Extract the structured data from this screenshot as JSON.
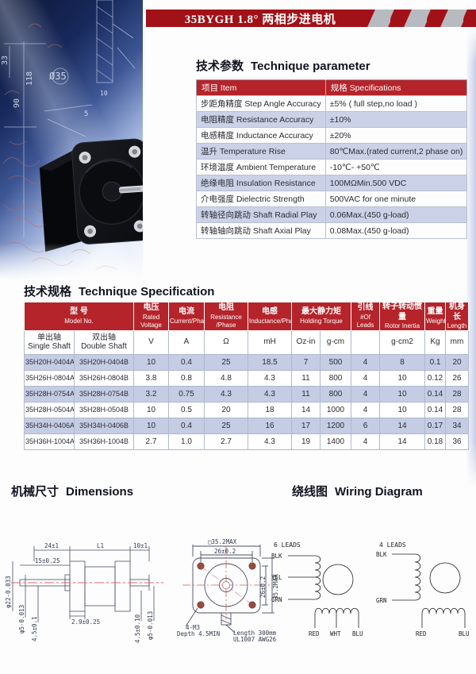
{
  "title": "35BYGH 1.8°  两相步进电机",
  "colors": {
    "banner_red": "#a21118",
    "table_header_red": "#b4242a",
    "row_blue": "#c5cde5",
    "stripe_gray": "#b7babe"
  },
  "parameters": {
    "heading_zh": "技术参数",
    "heading_en": "Technique parameter",
    "col_item": "项目  Item",
    "col_spec": "规格  Specifications",
    "rows": [
      {
        "item": "步距角精度 Step Angle Accuracy",
        "spec": "±5% ( full step,no load )"
      },
      {
        "item": "电阻精度 Resistance Accuracy",
        "spec": "±10%"
      },
      {
        "item": "电感精度 Inductance Accuracy",
        "spec": "±20%"
      },
      {
        "item": "温升 Temperature Rise",
        "spec": "80℃Max.(rated current,2 phase on)"
      },
      {
        "item": "环境温度  Ambient Temperature",
        "spec": "-10℃- +50℃"
      },
      {
        "item": "绝缘电阻  Insulation Resistance",
        "spec": "100MΩMin.500 VDC"
      },
      {
        "item": "介电强度 Dielectric Strength",
        "spec": "500VAC for one minute"
      },
      {
        "item": "转轴径向跳动 Shaft Radial Play",
        "spec": "0.06Max.(450 g-load)"
      },
      {
        "item": "转轴轴向跳动 Shaft Axial Play",
        "spec": "0.08Max.(450 g-load)"
      }
    ]
  },
  "specification": {
    "heading_zh": "技术规格",
    "heading_en": "Technique Specification",
    "columns": [
      {
        "zh": "型  号",
        "en": "Model No.",
        "span": 2
      },
      {
        "zh": "电压",
        "en": "Rated Voltage"
      },
      {
        "zh": "电流",
        "en": "Current/Phase"
      },
      {
        "zh": "电阻",
        "en": "Resistance /Phase"
      },
      {
        "zh": "电感",
        "en": "Inductance/Phase"
      },
      {
        "zh": "最大静力矩",
        "en": "Holding Torque",
        "span": 2
      },
      {
        "zh": "引线",
        "en": "#Of Leads"
      },
      {
        "zh": "转子转动惯量",
        "en": "Rotor Inertia"
      },
      {
        "zh": "重量",
        "en": "Weight"
      },
      {
        "zh": "机身长",
        "en": "Length"
      }
    ],
    "sub_headers": [
      "单出轴\nSingle Shaft",
      "双出轴\nDouble Shaft",
      "V",
      "A",
      "Ω",
      "mH",
      "Oz-in",
      "g-cm",
      "",
      "g-cm2",
      "Kg",
      "mm"
    ],
    "rows": [
      [
        "35H20H-0404A",
        "35H20H-0404B",
        "10",
        "0.4",
        "25",
        "18.5",
        "7",
        "500",
        "4",
        "8",
        "0.1",
        "20"
      ],
      [
        "35H26H-0804A",
        "35H26H-0804B",
        "3.8",
        "0.8",
        "4.8",
        "4.3",
        "11",
        "800",
        "4",
        "10",
        "0.12",
        "26"
      ],
      [
        "35H28H-0754A",
        "35H28H-0754B",
        "3.2",
        "0.75",
        "4.3",
        "4.3",
        "11",
        "800",
        "4",
        "10",
        "0.14",
        "28"
      ],
      [
        "35H28H-0504A",
        "35H28H-0504B",
        "10",
        "0.5",
        "20",
        "18",
        "14",
        "1000",
        "4",
        "10",
        "0.14",
        "28"
      ],
      [
        "35H34H-0406A",
        "35H34H-0406B",
        "10",
        "0.4",
        "25",
        "16",
        "17",
        "1200",
        "6",
        "14",
        "0.17",
        "34"
      ],
      [
        "35H36H-1004A",
        "35H36H-1004B",
        "2.7",
        "1.0",
        "2.7",
        "4.3",
        "19",
        "1400",
        "4",
        "14",
        "0.18",
        "36"
      ]
    ]
  },
  "dimensions": {
    "heading_zh": "机械尺寸",
    "heading_en": "Dimensions",
    "side_view": {
      "dim_24": "24±1",
      "dim_l1": "L1",
      "dim_10": "10±1",
      "dim_15": "15±0.25",
      "dim_phi22": "φ22-0.033",
      "dim_phi5_left": "φ5-0.013",
      "dim_45_left": "4.5±0.1",
      "dim_29": "2.9±0.25",
      "dim_45_right": "4.5±0.10",
      "dim_phi5_right": "φ5-0.013"
    },
    "front_view": {
      "dim_square": "□35.2MAX",
      "dim_26_top": "26±0.2",
      "dim_26_right": "26±0.2",
      "dim_35_right": "35.2MAX",
      "callout_m3": "4-M3",
      "callout_depth": "Depth 4.5MIN",
      "callout_length": "Length 300mm",
      "callout_wire": "UL1007 AWG26"
    }
  },
  "wiring": {
    "heading_zh": "绕线图",
    "heading_en": "Wiring Diagram",
    "six": {
      "label": "6 LEADS",
      "leads_left": [
        "BLK",
        "YEL",
        "GRN"
      ],
      "leads_bottom": [
        "RED",
        "WHT",
        "BLU"
      ]
    },
    "four": {
      "label": "4 LEADS",
      "leads_left": [
        "BLK",
        "GRN"
      ],
      "leads_bottom": [
        "RED",
        "BLU"
      ]
    }
  },
  "photo": {
    "numbers": {
      "n33": "33",
      "n118": "118",
      "n90": "90",
      "phi35": "Ø35",
      "n10": "10",
      "n5": "5"
    }
  }
}
